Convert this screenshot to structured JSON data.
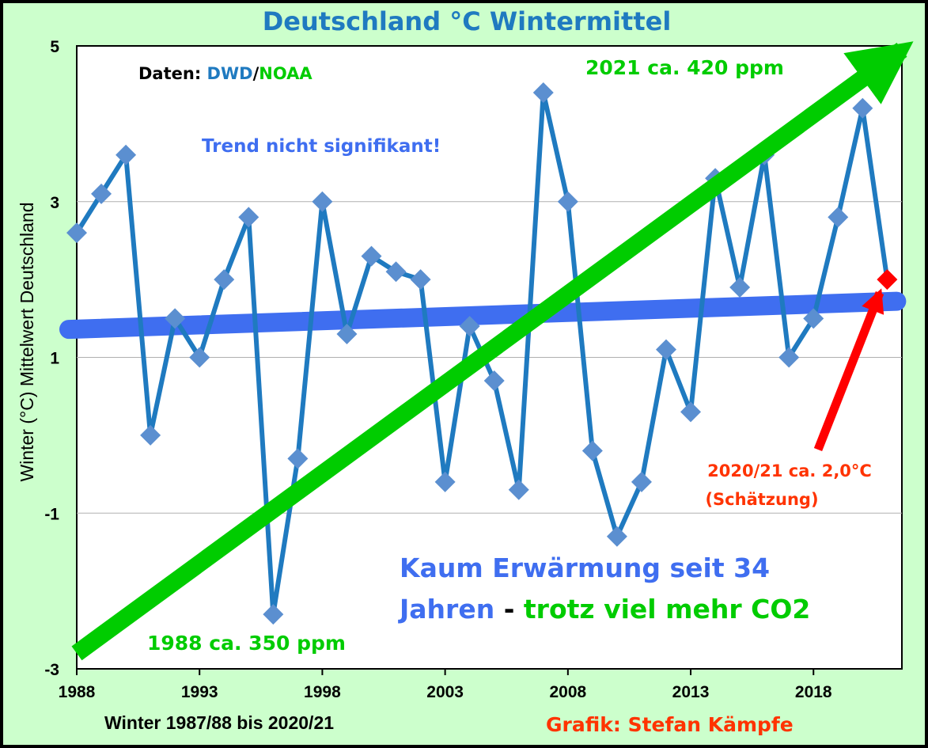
{
  "chart_data": {
    "type": "line",
    "title": "Deutschland °C Wintermittel",
    "xlabel": "Winter 1987/88 bis 2020/21",
    "ylabel": "Winter (°C) Mittelwert Deutschland",
    "xlim": [
      1988,
      2021.6
    ],
    "ylim": [
      -3,
      5
    ],
    "x_ticks": [
      "1988",
      "1993",
      "1998",
      "2003",
      "2008",
      "2013",
      "2018"
    ],
    "y_ticks": [
      "-3",
      "-1",
      "1",
      "3",
      "5"
    ],
    "grid": "horizontal",
    "x": [
      1988,
      1989,
      1990,
      1991,
      1992,
      1993,
      1994,
      1995,
      1996,
      1997,
      1998,
      1999,
      2000,
      2001,
      2002,
      2003,
      2004,
      2005,
      2006,
      2007,
      2008,
      2009,
      2010,
      2011,
      2012,
      2013,
      2014,
      2015,
      2016,
      2017,
      2018,
      2019,
      2020,
      2021
    ],
    "series": [
      {
        "color": "#1f7ac0",
        "marker_color": "#5b8fd0",
        "values": [
          2.6,
          3.1,
          3.6,
          0.0,
          1.5,
          1.0,
          2.0,
          2.8,
          -2.3,
          -0.3,
          3.0,
          1.3,
          2.3,
          2.1,
          2.0,
          -0.6,
          1.4,
          0.7,
          -0.7,
          4.4,
          3.0,
          -0.2,
          -1.3,
          -0.6,
          1.1,
          0.3,
          3.3,
          1.9,
          3.6,
          1.0,
          1.5,
          2.8,
          4.2,
          2.0
        ]
      }
    ],
    "estimate_point": {
      "x": 2021,
      "y": 2.0,
      "color": "#ff0000"
    },
    "trend_line": {
      "x": [
        1988,
        2021
      ],
      "y": [
        1.36,
        1.72
      ],
      "color": "#3f6ef0"
    },
    "co2_arrow": {
      "x": [
        1988,
        2021.6
      ],
      "y": [
        -2.8,
        4.95
      ],
      "color": "#00cc00"
    },
    "annotations": {
      "source_prefix": "Daten: ",
      "source_dwd": "DWD",
      "source_sep": "/",
      "source_noaa": "NOAA",
      "trend_note": "Trend nicht signifikant!",
      "co2_2021": "2021 ca. 420 ppm",
      "co2_1988": "1988 ca. 350 ppm",
      "estimate_line1": "2020/21 ca. 2,0°C",
      "estimate_line2": "(Schätzung)",
      "headline_line1": "Kaum Erwärmung seit 34",
      "headline_line2a": "Jahren",
      "headline_dash": " - ",
      "headline_line2b": "trotz viel mehr CO2",
      "credit": "Grafik: Stefan Kämpfe"
    },
    "colors": {
      "title": "#1f7ac0",
      "outer_background": "#ccffcc",
      "plot_background": "#ffffff",
      "headline_blue": "#3f6ef0",
      "co2_green": "#00cc00",
      "credit_red": "#ff3300"
    }
  }
}
